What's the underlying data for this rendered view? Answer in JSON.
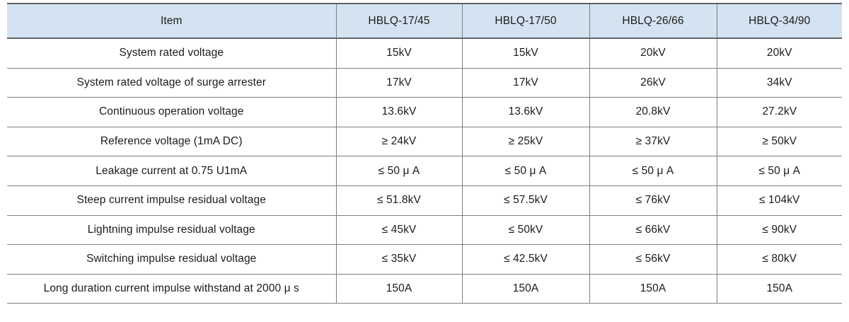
{
  "table": {
    "colors": {
      "header_bg": "#d4e3f1",
      "border": "#7f7f7f",
      "border_strong": "#5f6368",
      "text": "#1b1b1b"
    },
    "columns": [
      "Item",
      "HBLQ-17/45",
      "HBLQ-17/50",
      "HBLQ-26/66",
      "HBLQ-34/90"
    ],
    "rows": [
      {
        "item": "System rated voltage",
        "values": [
          "15kV",
          "15kV",
          "20kV",
          "20kV"
        ]
      },
      {
        "item": "System rated voltage of surge arrester",
        "values": [
          "17kV",
          "17kV",
          "26kV",
          "34kV"
        ]
      },
      {
        "item": "Continuous operation voltage",
        "values": [
          "13.6kV",
          "13.6kV",
          "20.8kV",
          "27.2kV"
        ]
      },
      {
        "item": "Reference voltage (1mA DC)",
        "values": [
          "≥ 24kV",
          "≥ 25kV",
          "≥ 37kV",
          "≥ 50kV"
        ]
      },
      {
        "item": "Leakage current at 0.75 U1mA",
        "values": [
          "≤ 50 μ A",
          "≤ 50 μ A",
          "≤ 50 μ A",
          "≤ 50 μ A"
        ]
      },
      {
        "item": "Steep current impulse residual voltage",
        "values": [
          "≤ 51.8kV",
          "≤ 57.5kV",
          "≤ 76kV",
          "≤ 104kV"
        ]
      },
      {
        "item": "Lightning impulse residual voltage",
        "values": [
          "≤ 45kV",
          "≤ 50kV",
          "≤ 66kV",
          "≤ 90kV"
        ]
      },
      {
        "item": "Switching impulse residual voltage",
        "values": [
          "≤ 35kV",
          "≤ 42.5kV",
          "≤ 56kV",
          "≤ 80kV"
        ]
      },
      {
        "item": "Long duration current impulse withstand at 2000 μ s",
        "values": [
          "150A",
          "150A",
          "150A",
          "150A"
        ]
      }
    ]
  }
}
